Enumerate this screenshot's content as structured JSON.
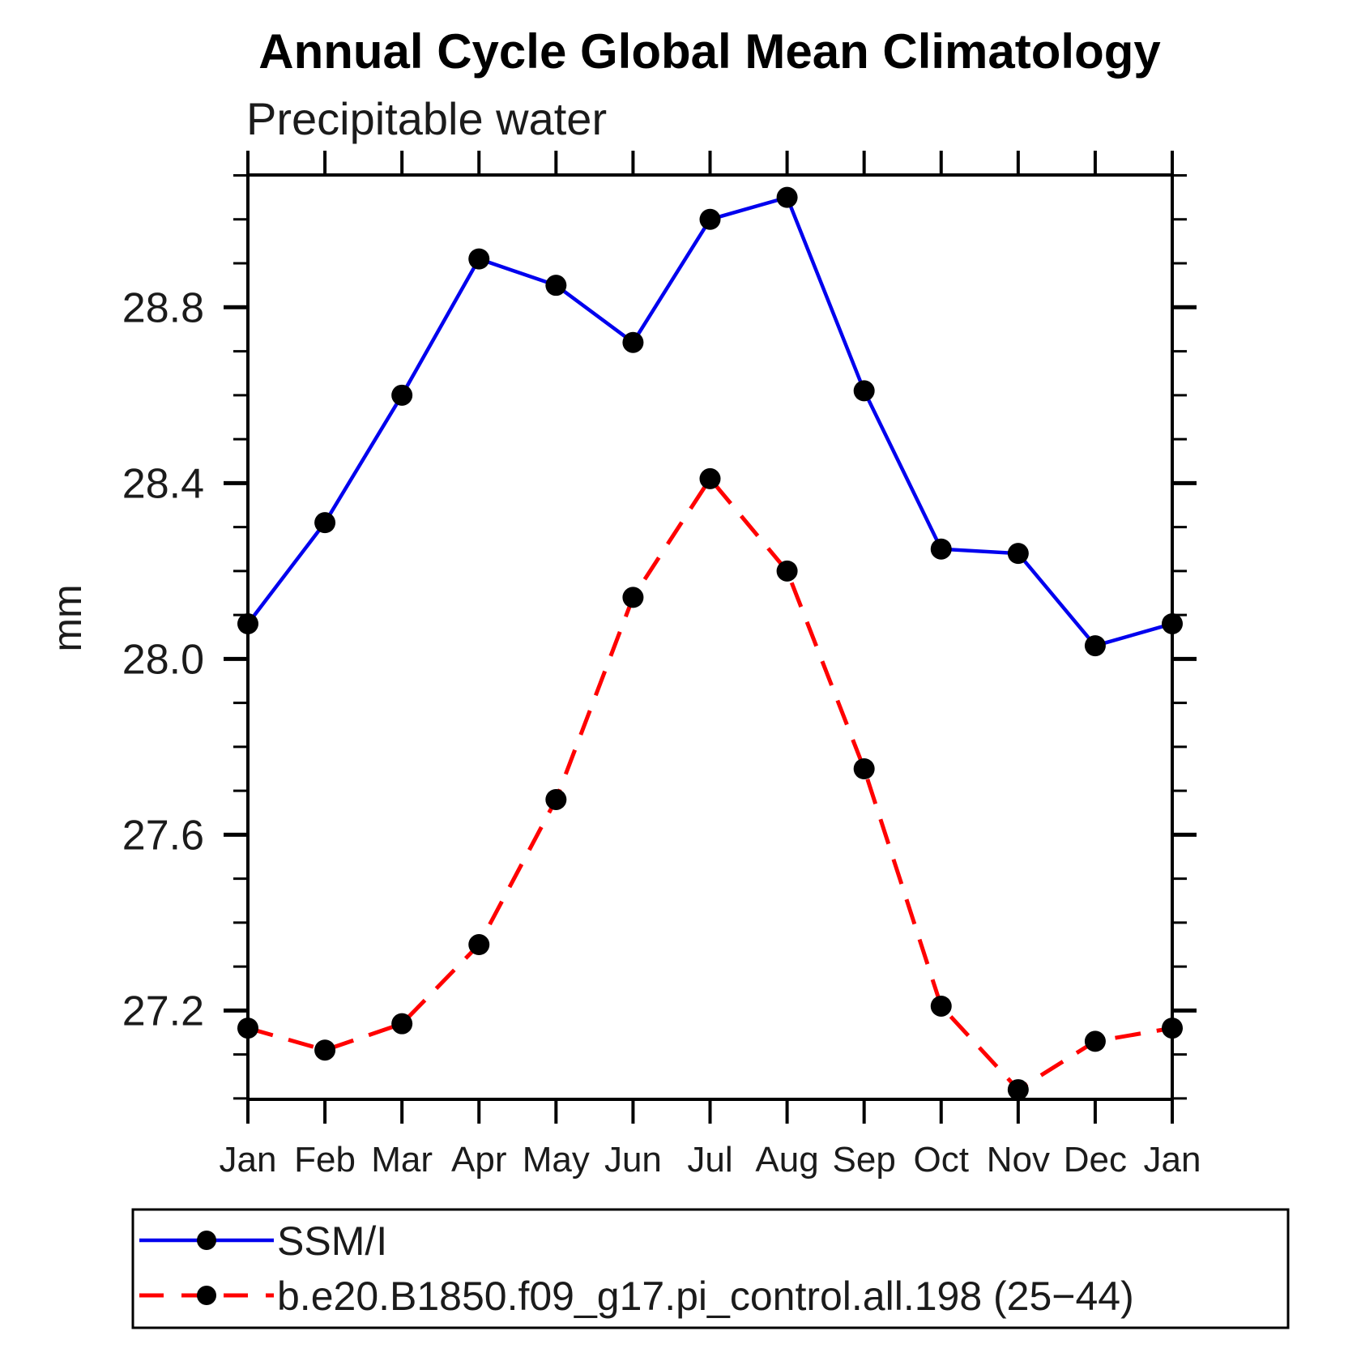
{
  "page": {
    "title": "Annual Cycle Global Mean Climatology",
    "subtitle": "Precipitable water"
  },
  "chart_data": {
    "type": "line",
    "title": "Annual Cycle Global Mean Climatology",
    "subtitle": "Precipitable water",
    "xlabel": "",
    "ylabel": "mm",
    "x_tick_labels": [
      "Jan",
      "Feb",
      "Mar",
      "Apr",
      "May",
      "Jun",
      "Jul",
      "Aug",
      "Sep",
      "Oct",
      "Nov",
      "Dec",
      "Jan"
    ],
    "ylim": [
      26.998,
      29.101
    ],
    "y_major_ticks": [
      27.2,
      27.6,
      28.0,
      28.4,
      28.8
    ],
    "y_major_tick_labels": [
      "27.2",
      "27.6",
      "28.0",
      "28.4",
      "28.8"
    ],
    "y_minor_step": 0.1,
    "grid": false,
    "frame_color": "#000000",
    "legend_position": "bottom",
    "series": [
      {
        "name": "SSM/I",
        "color": "#0000ee",
        "style": "solid",
        "marker": "filled-circle",
        "marker_color": "#000000",
        "values": [
          28.08,
          28.31,
          28.6,
          28.91,
          28.85,
          28.72,
          29.0,
          29.05,
          28.61,
          28.25,
          28.24,
          28.03,
          28.08
        ]
      },
      {
        "name": "b.e20.B1850.f09_g17.pi_control.all.198 (25−44)",
        "color": "#ff0000",
        "style": "dashed",
        "marker": "filled-circle",
        "marker_color": "#000000",
        "values": [
          27.16,
          27.11,
          27.17,
          27.35,
          27.68,
          28.14,
          28.41,
          28.2,
          27.75,
          27.21,
          27.02,
          27.13,
          27.16
        ]
      }
    ]
  }
}
